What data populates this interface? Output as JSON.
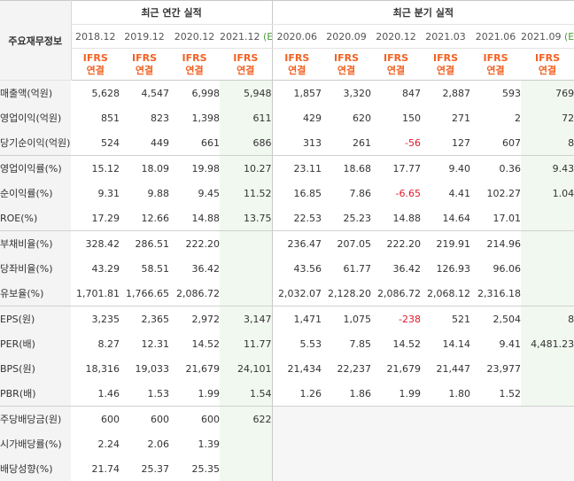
{
  "header": {
    "row_title": "주요재무정보",
    "annual_title": "최근 연간 실적",
    "quarter_title": "최근 분기 실적",
    "estimate_mark": "(E)"
  },
  "columns": [
    {
      "period": "2018.12",
      "acct": "IFRS",
      "basis": "연결",
      "estimate": false
    },
    {
      "period": "2019.12",
      "acct": "IFRS",
      "basis": "연결",
      "estimate": false
    },
    {
      "period": "2020.12",
      "acct": "IFRS",
      "basis": "연결",
      "estimate": false
    },
    {
      "period": "2021.12",
      "acct": "IFRS",
      "basis": "연결",
      "estimate": true
    },
    {
      "period": "2020.06",
      "acct": "IFRS",
      "basis": "연결",
      "estimate": false
    },
    {
      "period": "2020.09",
      "acct": "IFRS",
      "basis": "연결",
      "estimate": false
    },
    {
      "period": "2020.12",
      "acct": "IFRS",
      "basis": "연결",
      "estimate": false
    },
    {
      "period": "2021.03",
      "acct": "IFRS",
      "basis": "연결",
      "estimate": false
    },
    {
      "period": "2021.06",
      "acct": "IFRS",
      "basis": "연결",
      "estimate": false
    },
    {
      "period": "2021.09",
      "acct": "IFRS",
      "basis": "연결",
      "estimate": true
    }
  ],
  "rows": [
    {
      "label": "매출액(억원)",
      "values": [
        "5,628",
        "4,547",
        "6,998",
        "5,948",
        "1,857",
        "3,320",
        "847",
        "2,887",
        "593",
        "769"
      ]
    },
    {
      "label": "영업이익(억원)",
      "values": [
        "851",
        "823",
        "1,398",
        "611",
        "429",
        "620",
        "150",
        "271",
        "2",
        "72"
      ]
    },
    {
      "label": "당기순이익(억원)",
      "values": [
        "524",
        "449",
        "661",
        "686",
        "313",
        "261",
        "-56",
        "127",
        "607",
        "8"
      ]
    },
    {
      "label": "영업이익률(%)",
      "values": [
        "15.12",
        "18.09",
        "19.98",
        "10.27",
        "23.11",
        "18.68",
        "17.77",
        "9.40",
        "0.36",
        "9.43"
      ]
    },
    {
      "label": "순이익률(%)",
      "values": [
        "9.31",
        "9.88",
        "9.45",
        "11.52",
        "16.85",
        "7.86",
        "-6.65",
        "4.41",
        "102.27",
        "1.04"
      ]
    },
    {
      "label": "ROE(%)",
      "values": [
        "17.29",
        "12.66",
        "14.88",
        "13.75",
        "22.53",
        "25.23",
        "14.88",
        "14.64",
        "17.01",
        ""
      ]
    },
    {
      "label": "부채비율(%)",
      "values": [
        "328.42",
        "286.51",
        "222.20",
        "",
        "236.47",
        "207.05",
        "222.20",
        "219.91",
        "214.96",
        ""
      ]
    },
    {
      "label": "당좌비율(%)",
      "values": [
        "43.29",
        "58.51",
        "36.42",
        "",
        "43.56",
        "61.77",
        "36.42",
        "126.93",
        "96.06",
        ""
      ]
    },
    {
      "label": "유보율(%)",
      "values": [
        "1,701.81",
        "1,766.65",
        "2,086.72",
        "",
        "2,032.07",
        "2,128.20",
        "2,086.72",
        "2,068.12",
        "2,316.18",
        ""
      ]
    },
    {
      "label": "EPS(원)",
      "values": [
        "3,235",
        "2,365",
        "2,972",
        "3,147",
        "1,471",
        "1,075",
        "-238",
        "521",
        "2,504",
        "8"
      ]
    },
    {
      "label": "PER(배)",
      "values": [
        "8.27",
        "12.31",
        "14.52",
        "11.77",
        "5.53",
        "7.85",
        "14.52",
        "14.14",
        "9.41",
        "4,481.23"
      ]
    },
    {
      "label": "BPS(원)",
      "values": [
        "18,316",
        "19,033",
        "21,679",
        "24,101",
        "21,434",
        "22,237",
        "21,679",
        "21,447",
        "23,977",
        ""
      ]
    },
    {
      "label": "PBR(배)",
      "values": [
        "1.46",
        "1.53",
        "1.99",
        "1.54",
        "1.26",
        "1.86",
        "1.99",
        "1.80",
        "1.52",
        ""
      ]
    },
    {
      "label": "주당배당금(원)",
      "values": [
        "600",
        "600",
        "600",
        "622",
        "",
        "",
        "",
        "",
        "",
        ""
      ]
    },
    {
      "label": "시가배당률(%)",
      "values": [
        "2.24",
        "2.06",
        "1.39",
        "",
        "",
        "",
        "",
        "",
        "",
        ""
      ]
    },
    {
      "label": "배당성향(%)",
      "values": [
        "21.74",
        "25.37",
        "25.35",
        "",
        "",
        "",
        "",
        "",
        "",
        ""
      ]
    }
  ],
  "colors": {
    "negative": "#e0192a",
    "ifrs": "#f26122",
    "estimate_bg": "#f1f8f0",
    "estimate_mark": "#4b9b3c"
  }
}
